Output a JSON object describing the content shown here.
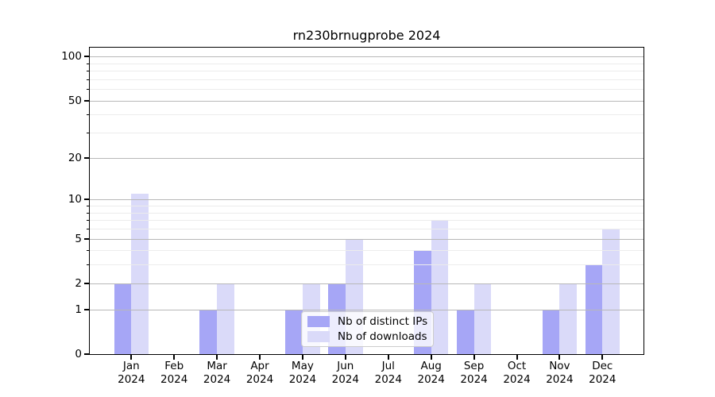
{
  "figure": {
    "title": "rn230brnugprobe 2024"
  },
  "chart_data": {
    "type": "bar",
    "title": "rn230brnugprobe 2024",
    "categories": [
      "Jan",
      "Feb",
      "Mar",
      "Apr",
      "May",
      "Jun",
      "Jul",
      "Aug",
      "Sep",
      "Oct",
      "Nov",
      "Dec"
    ],
    "category_year": "2024",
    "series": [
      {
        "name": "Nb of distinct IPs",
        "color": "#a6a6f6",
        "values": [
          2,
          0,
          1,
          0,
          1,
          2,
          0,
          4,
          1,
          0,
          1,
          3
        ]
      },
      {
        "name": "Nb of downloads",
        "color": "#dadaf9",
        "values": [
          11,
          0,
          2,
          0,
          2,
          5,
          0,
          7,
          2,
          0,
          2,
          6
        ]
      }
    ],
    "xlabel": "",
    "ylabel": "",
    "yscale": "log1p",
    "ylim": [
      0,
      115
    ],
    "yticks": [
      0,
      1,
      2,
      5,
      10,
      20,
      50,
      100
    ],
    "minor_gridlines": [
      3,
      4,
      6,
      7,
      8,
      9,
      30,
      40,
      60,
      70,
      80,
      90
    ],
    "grid": true,
    "legend_position": "lower center",
    "colors": {
      "major_grid": "#b8b8b8",
      "minor_grid": "#ececec",
      "axis": "#000000",
      "background": "#ffffff"
    }
  }
}
